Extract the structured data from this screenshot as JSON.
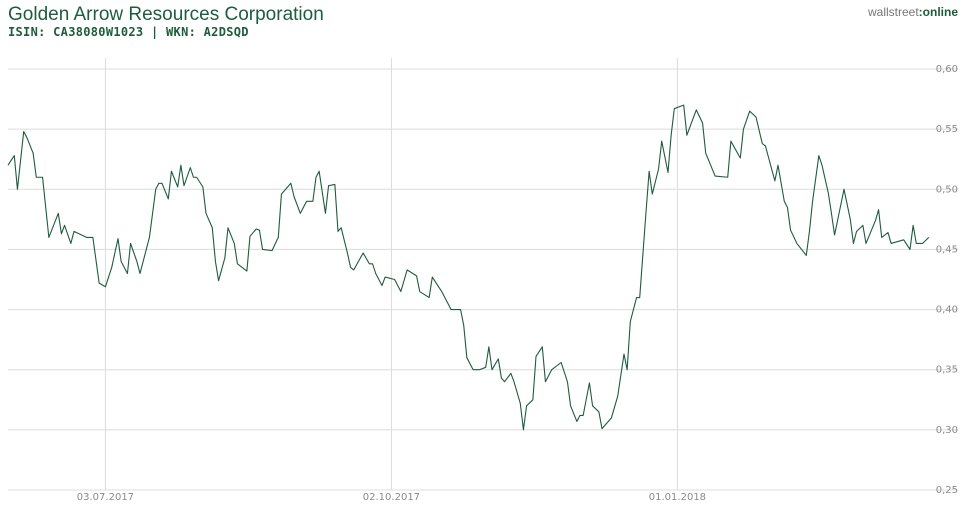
{
  "chart_data": {
    "type": "line",
    "title": "Golden Arrow Resources Corporation",
    "subtitle": "ISIN: CA38080W1023 | WKN: A2DSQD",
    "logo": [
      "wallstreet",
      ":online"
    ],
    "color": "#1e5c3d",
    "grid": true,
    "xlim": [
      "2017-06-02",
      "2018-03-23"
    ],
    "xticks": [
      {
        "value": "2017-07-03",
        "label": "03.07.2017"
      },
      {
        "value": "2017-10-02",
        "label": "02.10.2017"
      },
      {
        "value": "2018-01-01",
        "label": "01.01.2018"
      }
    ],
    "ylim": [
      0.25,
      0.6
    ],
    "yticks": [
      {
        "value": 0.25,
        "label": "0,25"
      },
      {
        "value": 0.3,
        "label": "0,30"
      },
      {
        "value": 0.35,
        "label": "0,35"
      },
      {
        "value": 0.4,
        "label": "0,40"
      },
      {
        "value": 0.45,
        "label": "0,45"
      },
      {
        "value": 0.5,
        "label": "0,50"
      },
      {
        "value": 0.55,
        "label": "0,55"
      },
      {
        "value": 0.6,
        "label": "0,60"
      }
    ],
    "x": [
      "2017-06-02",
      "2017-06-04",
      "2017-06-05",
      "2017-06-07",
      "2017-06-08",
      "2017-06-10",
      "2017-06-11",
      "2017-06-13",
      "2017-06-15",
      "2017-06-18",
      "2017-06-19",
      "2017-06-20",
      "2017-06-22",
      "2017-06-23",
      "2017-06-27",
      "2017-06-29",
      "2017-07-01",
      "2017-07-03",
      "2017-07-05",
      "2017-07-07",
      "2017-07-08",
      "2017-07-10",
      "2017-07-11",
      "2017-07-13",
      "2017-07-14",
      "2017-07-17",
      "2017-07-19",
      "2017-07-20",
      "2017-07-21",
      "2017-07-23",
      "2017-07-24",
      "2017-07-26",
      "2017-07-27",
      "2017-07-28",
      "2017-07-30",
      "2017-07-31",
      "2017-08-01",
      "2017-08-03",
      "2017-08-04",
      "2017-08-06",
      "2017-08-07",
      "2017-08-08",
      "2017-08-10",
      "2017-08-11",
      "2017-08-13",
      "2017-08-14",
      "2017-08-17",
      "2017-08-18",
      "2017-08-20",
      "2017-08-21",
      "2017-08-22",
      "2017-08-25",
      "2017-08-27",
      "2017-08-28",
      "2017-08-31",
      "2017-09-01",
      "2017-09-03",
      "2017-09-05",
      "2017-09-07",
      "2017-09-08",
      "2017-09-09",
      "2017-09-11",
      "2017-09-12",
      "2017-09-14",
      "2017-09-15",
      "2017-09-16",
      "2017-09-18",
      "2017-09-19",
      "2017-09-20",
      "2017-09-23",
      "2017-09-25",
      "2017-09-26",
      "2017-09-27",
      "2017-09-29",
      "2017-09-30",
      "2017-10-03",
      "2017-10-05",
      "2017-10-07",
      "2017-10-10",
      "2017-10-11",
      "2017-10-14",
      "2017-10-15",
      "2017-10-18",
      "2017-10-21",
      "2017-10-24",
      "2017-10-25",
      "2017-10-26",
      "2017-10-28",
      "2017-10-30",
      "2017-11-01",
      "2017-11-02",
      "2017-11-03",
      "2017-11-05",
      "2017-11-06",
      "2017-11-07",
      "2017-11-09",
      "2017-11-10",
      "2017-11-12",
      "2017-11-13",
      "2017-11-14",
      "2017-11-16",
      "2017-11-17",
      "2017-11-19",
      "2017-11-20",
      "2017-11-22",
      "2017-11-25",
      "2017-11-27",
      "2017-11-28",
      "2017-11-30",
      "2017-12-01",
      "2017-12-02",
      "2017-12-04",
      "2017-12-05",
      "2017-12-07",
      "2017-12-08",
      "2017-12-11",
      "2017-12-13",
      "2017-12-15",
      "2017-12-16",
      "2017-12-17",
      "2017-12-19",
      "2017-12-20",
      "2017-12-22",
      "2017-12-23",
      "2017-12-24",
      "2017-12-26",
      "2017-12-27",
      "2017-12-29",
      "2017-12-30",
      "2017-12-31",
      "2018-01-02",
      "2018-01-03",
      "2018-01-04",
      "2018-01-07",
      "2018-01-09",
      "2018-01-10",
      "2018-01-13",
      "2018-01-17",
      "2018-01-18",
      "2018-01-21",
      "2018-01-22",
      "2018-01-24",
      "2018-01-26",
      "2018-01-28",
      "2018-01-29",
      "2018-02-01",
      "2018-02-02",
      "2018-02-04",
      "2018-02-05",
      "2018-02-06",
      "2018-02-08",
      "2018-02-11",
      "2018-02-12",
      "2018-02-13",
      "2018-02-15",
      "2018-02-16",
      "2018-02-18",
      "2018-02-19",
      "2018-02-20",
      "2018-02-23",
      "2018-02-25",
      "2018-02-26",
      "2018-02-27",
      "2018-03-01",
      "2018-03-02",
      "2018-03-05",
      "2018-03-06",
      "2018-03-07",
      "2018-03-09",
      "2018-03-10",
      "2018-03-14",
      "2018-03-16",
      "2018-03-17",
      "2018-03-18",
      "2018-03-20",
      "2018-03-22"
    ],
    "values": [
      0.52,
      0.528,
      0.5,
      0.548,
      0.543,
      0.53,
      0.51,
      0.51,
      0.46,
      0.48,
      0.463,
      0.47,
      0.455,
      0.465,
      0.46,
      0.46,
      0.422,
      0.419,
      0.435,
      0.459,
      0.44,
      0.43,
      0.455,
      0.44,
      0.43,
      0.46,
      0.5,
      0.505,
      0.505,
      0.492,
      0.515,
      0.502,
      0.52,
      0.503,
      0.518,
      0.51,
      0.51,
      0.502,
      0.48,
      0.468,
      0.44,
      0.424,
      0.443,
      0.468,
      0.455,
      0.438,
      0.432,
      0.461,
      0.467,
      0.466,
      0.45,
      0.449,
      0.46,
      0.496,
      0.505,
      0.494,
      0.48,
      0.49,
      0.49,
      0.51,
      0.515,
      0.48,
      0.503,
      0.504,
      0.465,
      0.468,
      0.447,
      0.435,
      0.433,
      0.447,
      0.438,
      0.438,
      0.43,
      0.42,
      0.427,
      0.425,
      0.415,
      0.433,
      0.428,
      0.415,
      0.41,
      0.427,
      0.415,
      0.4,
      0.4,
      0.387,
      0.36,
      0.35,
      0.35,
      0.352,
      0.369,
      0.35,
      0.359,
      0.343,
      0.34,
      0.347,
      0.34,
      0.322,
      0.3,
      0.32,
      0.325,
      0.361,
      0.369,
      0.34,
      0.35,
      0.356,
      0.34,
      0.32,
      0.307,
      0.312,
      0.312,
      0.339,
      0.32,
      0.315,
      0.301,
      0.31,
      0.328,
      0.363,
      0.35,
      0.39,
      0.41,
      0.41,
      0.481,
      0.515,
      0.496,
      0.517,
      0.54,
      0.514,
      0.545,
      0.567,
      0.569,
      0.57,
      0.545,
      0.566,
      0.555,
      0.53,
      0.511,
      0.51,
      0.54,
      0.526,
      0.55,
      0.565,
      0.56,
      0.538,
      0.536,
      0.507,
      0.52,
      0.49,
      0.485,
      0.466,
      0.455,
      0.445,
      0.465,
      0.49,
      0.528,
      0.52,
      0.497,
      0.48,
      0.462,
      0.5,
      0.475,
      0.455,
      0.465,
      0.47,
      0.455,
      0.474,
      0.483,
      0.46,
      0.464,
      0.455,
      0.458,
      0.45,
      0.47,
      0.455,
      0.455,
      0.46
    ]
  }
}
